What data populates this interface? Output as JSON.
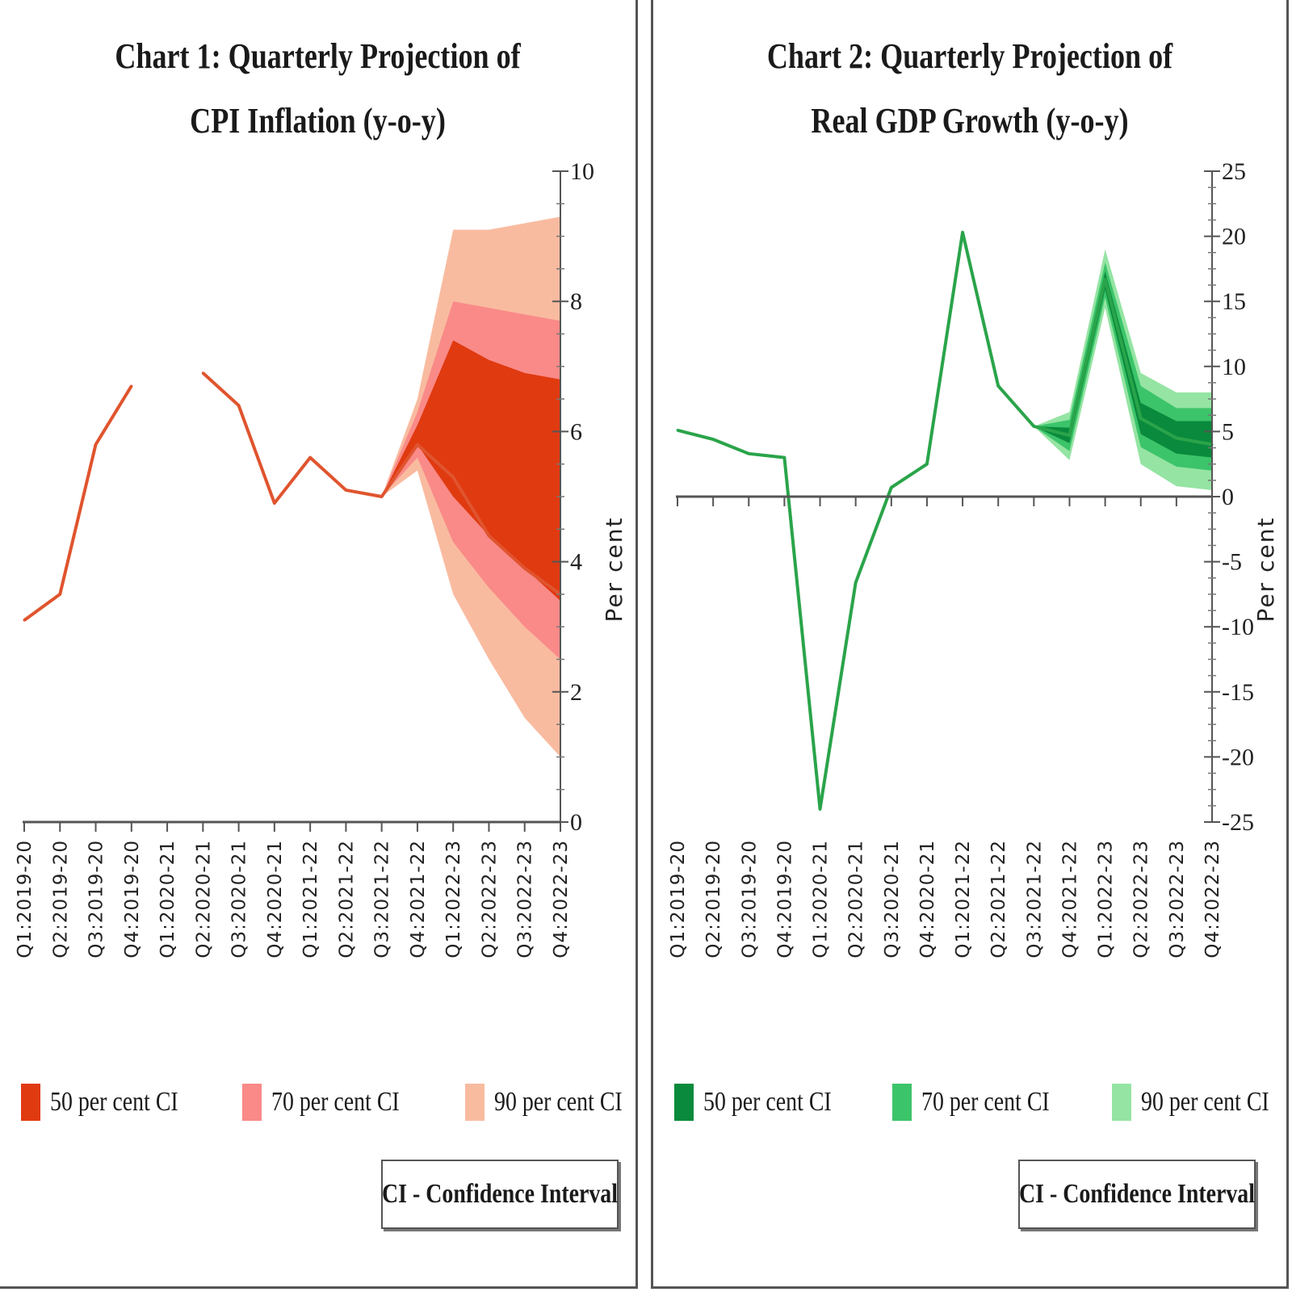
{
  "chart_data": [
    {
      "type": "area",
      "title_lines": [
        "Chart 1: Quarterly Projection of",
        "CPI Inflation (y-o-y)"
      ],
      "ylabel": "Per cent",
      "ylim": [
        0,
        10
      ],
      "yticks": [
        0,
        2,
        4,
        6,
        8,
        10
      ],
      "categories": [
        "Q1:2019-20",
        "Q2:2019-20",
        "Q3:2019-20",
        "Q4:2019-20",
        "Q1:2020-21",
        "Q2:2020-21",
        "Q3:2020-21",
        "Q4:2020-21",
        "Q1:2021-22",
        "Q2:2021-22",
        "Q3:2021-22",
        "Q4:2021-22",
        "Q1:2022-23",
        "Q2:2022-23",
        "Q3:2022-23",
        "Q4:2022-23"
      ],
      "series": [
        {
          "values": [
            3.1,
            3.5,
            5.8,
            6.7,
            null,
            6.9,
            6.4,
            4.9,
            5.6,
            5.1,
            5.0,
            5.8,
            5.3,
            4.4,
            3.9,
            3.5
          ]
        }
      ],
      "bands": [
        {
          "name": "90 per cent CI",
          "start_index": 10,
          "lower": [
            5.0,
            5.4,
            3.5,
            2.5,
            1.6,
            1.0
          ],
          "upper": [
            5.0,
            6.5,
            9.1,
            9.1,
            9.2,
            9.3
          ]
        },
        {
          "name": "70 per cent CI",
          "start_index": 10,
          "lower": [
            5.0,
            5.6,
            4.3,
            3.6,
            3.0,
            2.5
          ],
          "upper": [
            5.0,
            6.3,
            8.0,
            7.9,
            7.8,
            7.7
          ]
        },
        {
          "name": "50 per cent CI",
          "start_index": 10,
          "lower": [
            5.0,
            5.8,
            5.0,
            4.4,
            3.9,
            3.4
          ],
          "upper": [
            5.0,
            6.1,
            7.4,
            7.1,
            6.9,
            6.8
          ]
        }
      ],
      "colors": {
        "line": "#e0542e",
        "band50": "#e03a10",
        "band70": "#f98a88",
        "band90": "#f9bba0"
      },
      "legend": [
        "50 per cent CI",
        "70 per cent CI",
        "90 per cent CI"
      ],
      "note": "CI - Confidence Interval"
    },
    {
      "type": "area",
      "title_lines": [
        "Chart 2: Quarterly Projection of",
        "Real GDP Growth (y-o-y)"
      ],
      "ylabel": "Per cent",
      "ylim": [
        -25,
        25
      ],
      "yticks": [
        -25,
        -20,
        -15,
        -10,
        -5,
        0,
        5,
        10,
        15,
        20,
        25
      ],
      "categories": [
        "Q1:2019-20",
        "Q2:2019-20",
        "Q3:2019-20",
        "Q4:2019-20",
        "Q1:2020-21",
        "Q2:2020-21",
        "Q3:2020-21",
        "Q4:2020-21",
        "Q1:2021-22",
        "Q2:2021-22",
        "Q3:2021-22",
        "Q4:2021-22",
        "Q1:2022-23",
        "Q2:2022-23",
        "Q3:2022-23",
        "Q4:2022-23"
      ],
      "series": [
        {
          "values": [
            5.1,
            4.4,
            3.3,
            3.0,
            -24.0,
            -6.6,
            0.7,
            2.5,
            20.3,
            8.5,
            5.4,
            4.7,
            16.7,
            6.0,
            4.5,
            4.0
          ]
        }
      ],
      "bands": [
        {
          "name": "90 per cent CI",
          "start_index": 10,
          "lower": [
            5.4,
            2.8,
            14.5,
            2.5,
            0.8,
            0.5
          ],
          "upper": [
            5.4,
            6.5,
            19.0,
            9.5,
            8.0,
            8.0
          ]
        },
        {
          "name": "70 per cent CI",
          "start_index": 10,
          "lower": [
            5.4,
            3.5,
            15.3,
            3.8,
            2.3,
            2.0
          ],
          "upper": [
            5.4,
            5.9,
            18.0,
            8.5,
            6.8,
            6.8
          ]
        },
        {
          "name": "50 per cent CI",
          "start_index": 10,
          "lower": [
            5.4,
            4.1,
            15.9,
            4.8,
            3.3,
            3.0
          ],
          "upper": [
            5.4,
            5.3,
            17.3,
            7.2,
            5.8,
            5.8
          ]
        }
      ],
      "colors": {
        "line": "#2aa44a",
        "band50": "#0a8a3c",
        "band70": "#3cc46a",
        "band90": "#95e4a3"
      },
      "legend": [
        "50 per cent CI",
        "70 per cent CI",
        "90 per cent CI"
      ],
      "note": "CI - Confidence Interval"
    }
  ]
}
